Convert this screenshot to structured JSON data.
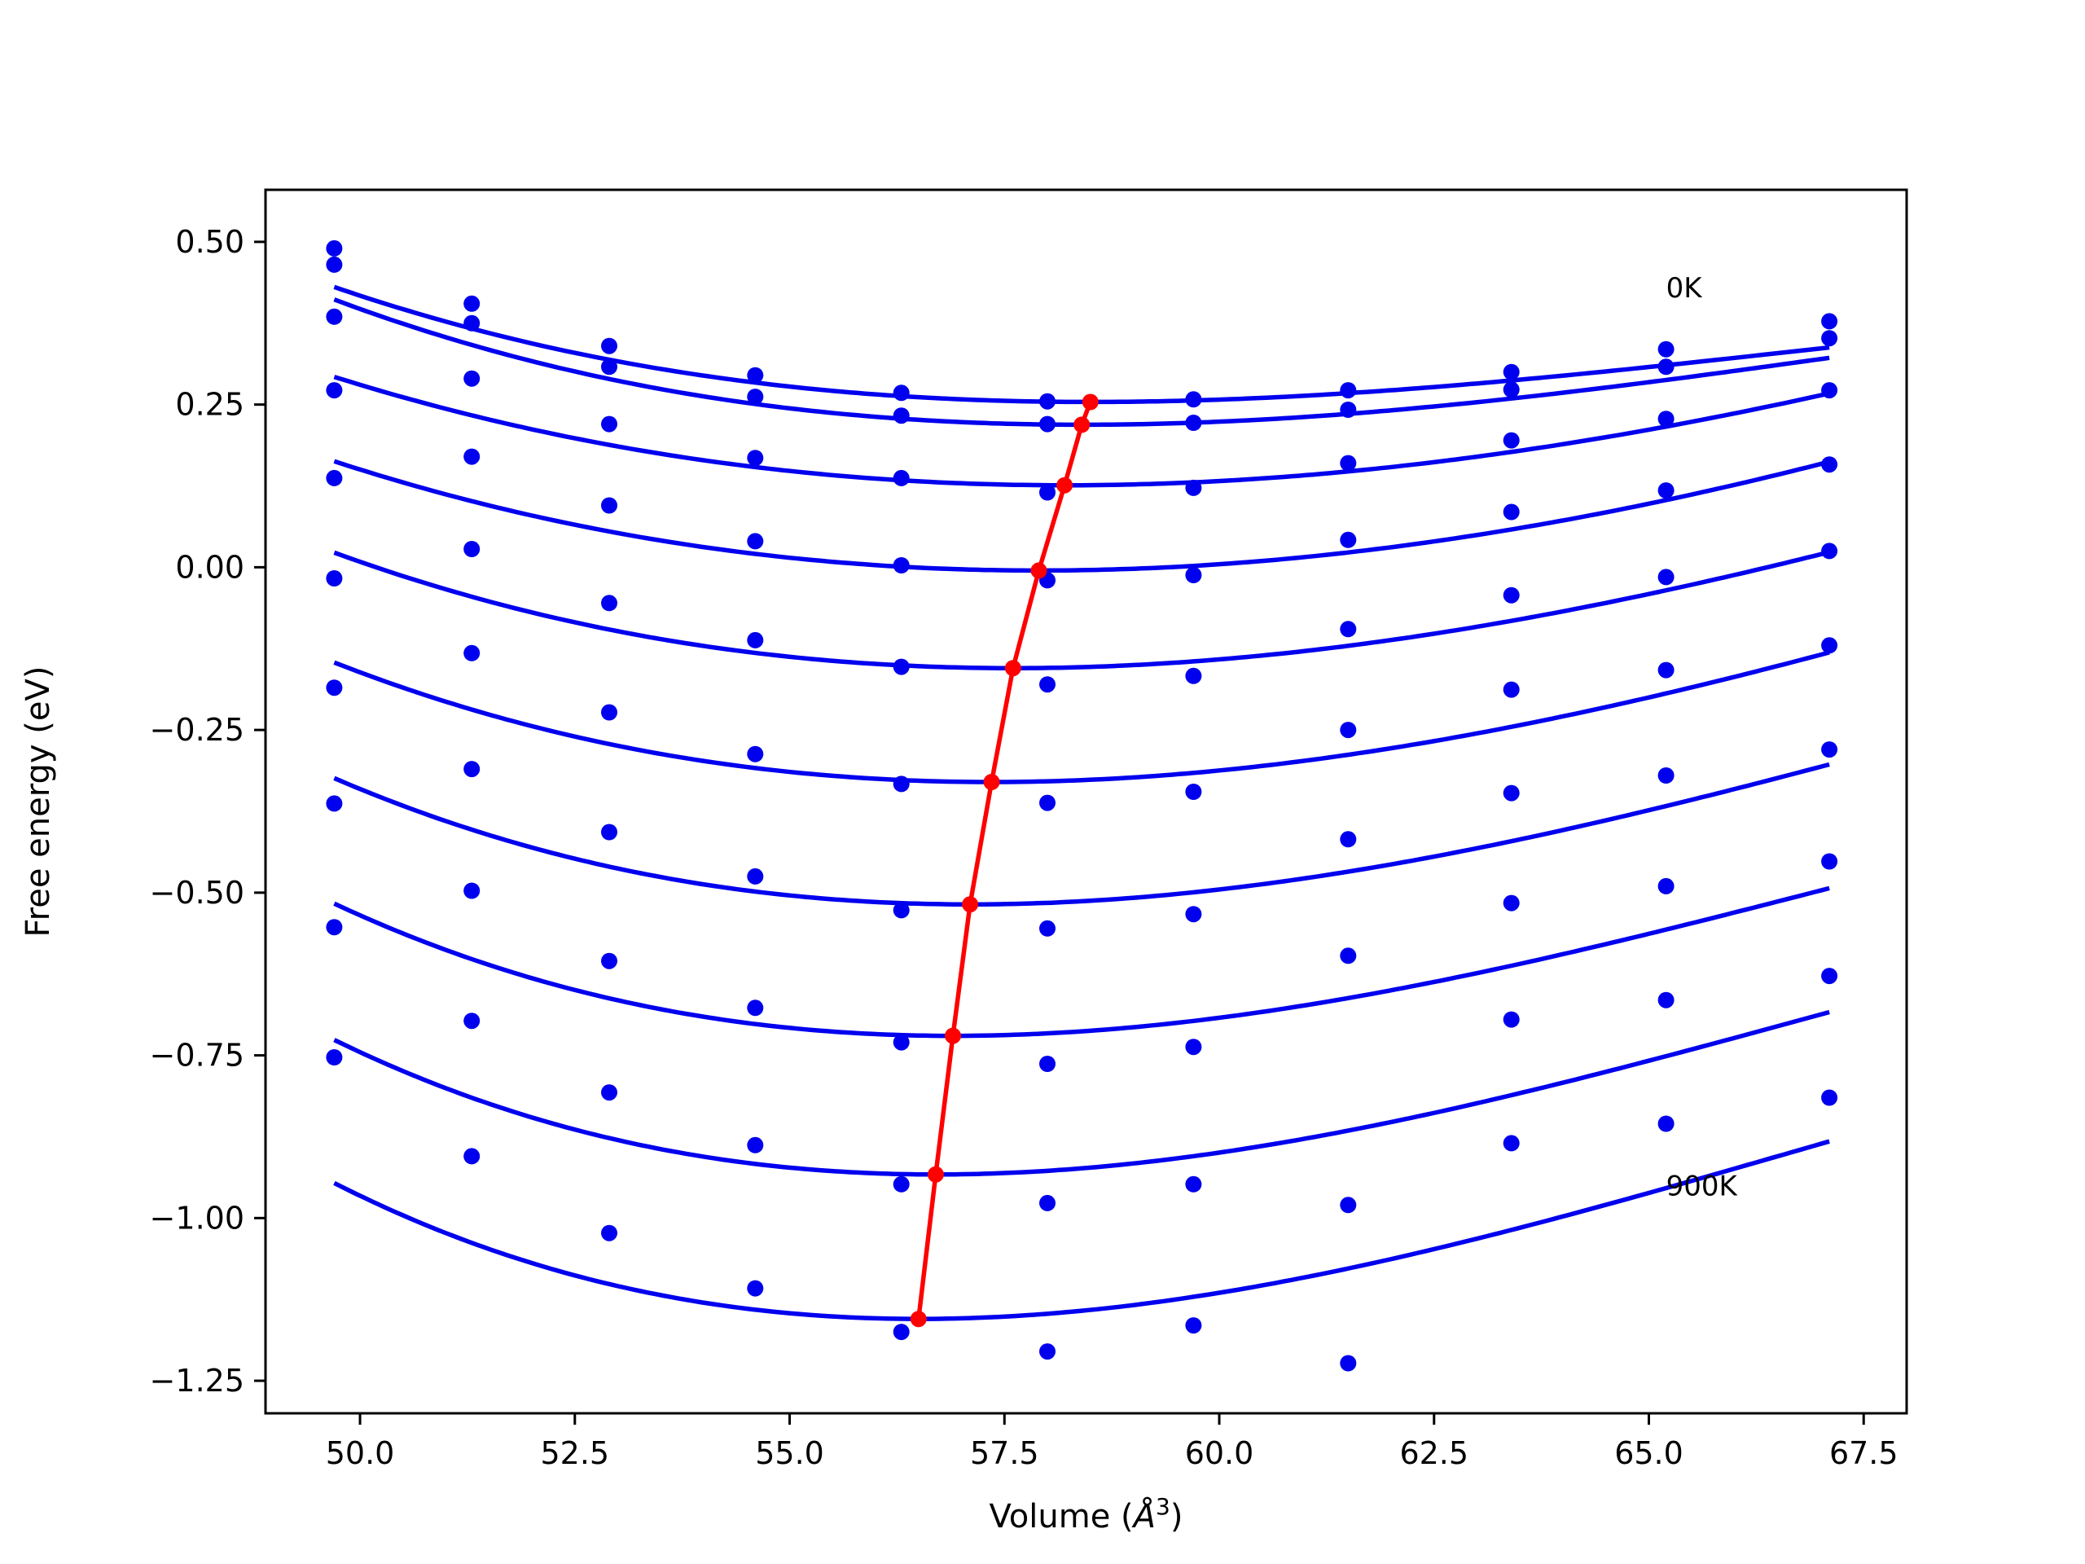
{
  "chart_data": {
    "type": "line",
    "xlabel": "Volume (",
    "xlabel_symbol": "Å",
    "xlabel_sup": "3",
    "xlabel_close": ")",
    "ylabel": "Free energy (eV)",
    "xlim": [
      48.9,
      68.0
    ],
    "ylim": [
      -1.3,
      0.58
    ],
    "xticks": [
      50.0,
      52.5,
      55.0,
      57.5,
      60.0,
      62.5,
      65.0,
      67.5
    ],
    "xtick_labels": [
      "50.0",
      "52.5",
      "55.0",
      "57.5",
      "60.0",
      "62.5",
      "65.0",
      "67.5"
    ],
    "yticks": [
      0.5,
      0.25,
      0.0,
      -0.25,
      -0.5,
      -0.75,
      -1.0,
      -1.25
    ],
    "ytick_labels": [
      "0.50",
      "0.25",
      "0.00",
      "−0.25",
      "−0.50",
      "−0.75",
      "−1.00",
      "−1.25"
    ],
    "grid": false,
    "legend": "none",
    "annotations": [
      {
        "text": "0K",
        "x": 65.2,
        "y": 0.43
      },
      {
        "text": "900K",
        "x": 65.2,
        "y": -0.95
      }
    ],
    "colors": {
      "curves": "#0000ee",
      "minima": "#ff0000",
      "frame": "#000000"
    },
    "volumes": [
      49.7,
      51.3,
      52.9,
      54.6,
      56.3,
      58.0,
      59.7,
      61.5,
      63.4,
      65.2,
      67.1
    ],
    "series": [
      {
        "points": [
          0.49,
          0.405,
          0.34,
          0.295,
          0.268,
          0.255,
          0.258,
          0.272,
          0.3,
          0.335,
          0.378
        ],
        "fit": {
          "v0": 58.5,
          "e0": 0.254,
          "a": 0.0017,
          "b": 6.6e-05
        }
      },
      {
        "points": [
          0.465,
          0.375,
          0.308,
          0.262,
          0.233,
          0.22,
          0.222,
          0.242,
          0.273,
          0.308,
          0.352
        ],
        "fit": {
          "v0": 58.4,
          "e0": 0.219,
          "a": 0.00195,
          "b": 6.8e-05
        }
      },
      {
        "points": [
          0.385,
          0.29,
          0.22,
          0.168,
          0.137,
          0.115,
          0.122,
          0.16,
          0.195,
          0.228,
          0.272
        ],
        "fit": {
          "v0": 58.2,
          "e0": 0.126,
          "a": 0.00205,
          "b": 3e-05
        }
      },
      {
        "points": [
          0.272,
          0.17,
          0.095,
          0.04,
          0.003,
          -0.02,
          -0.012,
          0.042,
          0.085,
          0.118,
          0.158
        ],
        "fit": {
          "v0": 57.9,
          "e0": -0.005,
          "a": 0.00225,
          "b": 3e-05
        }
      },
      {
        "points": [
          0.137,
          0.028,
          -0.055,
          -0.112,
          -0.153,
          -0.18,
          -0.167,
          -0.095,
          -0.043,
          -0.015,
          0.025
        ],
        "fit": {
          "v0": 57.6,
          "e0": -0.155,
          "a": 0.00245,
          "b": 5e-05
        }
      },
      {
        "points": [
          -0.017,
          -0.132,
          -0.223,
          -0.287,
          -0.333,
          -0.362,
          -0.345,
          -0.25,
          -0.188,
          -0.158,
          -0.12
        ],
        "fit": {
          "v0": 57.35,
          "e0": -0.33,
          "a": 0.00268,
          "b": 6e-05
        }
      },
      {
        "points": [
          -0.185,
          -0.31,
          -0.407,
          -0.475,
          -0.527,
          -0.555,
          -0.533,
          -0.418,
          -0.347,
          -0.32,
          -0.28
        ],
        "fit": {
          "v0": 57.1,
          "e0": -0.518,
          "a": 0.00295,
          "b": 8e-05
        }
      },
      {
        "points": [
          -0.363,
          -0.497,
          -0.605,
          -0.677,
          -0.73,
          -0.763,
          -0.737,
          -0.597,
          -0.516,
          -0.49,
          -0.452
        ],
        "fit": {
          "v0": 56.9,
          "e0": -0.72,
          "a": 0.0032,
          "b": 0.0001
        }
      },
      {
        "points": [
          -0.553,
          -0.697,
          -0.807,
          -0.888,
          -0.948,
          -0.977,
          -0.948,
          -0.98,
          -0.695,
          -0.665,
          -0.628
        ],
        "fit": {
          "v0": 56.7,
          "e0": -0.933,
          "a": 0.00345,
          "b": 0.00011
        }
      },
      {
        "points": [
          -0.753,
          -0.905,
          -1.023,
          -1.108,
          -1.175,
          -1.205,
          -1.165,
          -1.223,
          -0.885,
          -0.855,
          -0.815
        ],
        "fit": {
          "v0": 56.5,
          "e0": -1.155,
          "a": 0.0037,
          "b": 0.00012
        }
      }
    ],
    "minima_line": {
      "x": [
        58.5,
        58.4,
        58.2,
        57.9,
        57.6,
        57.35,
        57.1,
        56.9,
        56.7,
        56.5
      ],
      "y": [
        0.254,
        0.219,
        0.126,
        -0.005,
        -0.155,
        -0.33,
        -0.518,
        -0.72,
        -0.933,
        -1.155
      ]
    }
  }
}
